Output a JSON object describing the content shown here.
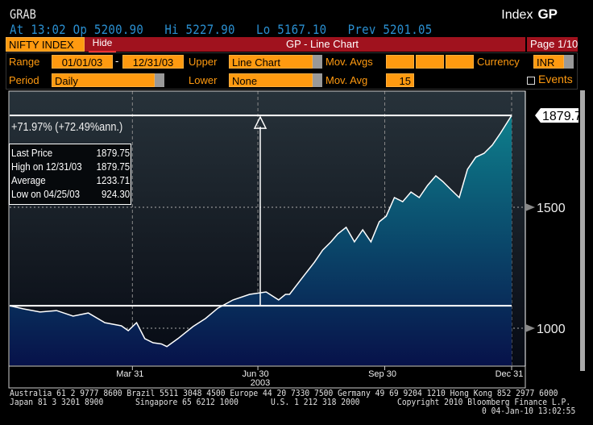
{
  "header": {
    "command": "GRAB",
    "security_type": "Index",
    "function": "GP",
    "quote": {
      "at": "At 13:02",
      "open": "Op 5200.90",
      "high": "Hi 5227.90",
      "low": "Lo 5167.10",
      "prev": "Prev 5201.05"
    }
  },
  "toolbar": {
    "ticker": "NIFTY INDEX",
    "hide_label": "Hide",
    "title": "GP - Line Chart",
    "page": "Page 1/10"
  },
  "controls": {
    "range_label": "Range",
    "range_start": "01/01/03",
    "range_sep": "-",
    "range_end": "12/31/03",
    "upper_label": "Upper",
    "upper_value": "Line Chart",
    "movavgs_label": "Mov. Avgs",
    "currency_label": "Currency",
    "currency_value": "INR",
    "period_label": "Period",
    "period_value": "Daily",
    "lower_label": "Lower",
    "lower_value": "None",
    "movavg_label": "Mov. Avg",
    "movavg_value": "15",
    "events_label": "Events"
  },
  "stats": {
    "change": "+71.97% (+72.49%ann.)",
    "rows": [
      [
        "Last Price",
        "1879.75"
      ],
      [
        "High on 12/31/03",
        "1879.75"
      ],
      [
        "Average",
        "1233.71"
      ],
      [
        "Low on 04/25/03",
        "924.30"
      ]
    ]
  },
  "chart_data": {
    "type": "area",
    "ylim": [
      900,
      2000
    ],
    "y_ticks": [
      "1500",
      "1000"
    ],
    "last_label": "1879.75",
    "x_ticks": [
      "Mar 31",
      "Jun 30",
      "Sep 30",
      "Dec 31"
    ],
    "year_label": "2003",
    "colors": {
      "line": "#ffffff",
      "fill_top": "#0e7f8c",
      "fill_bottom": "#07124a"
    },
    "series": [
      {
        "dates": [
          "2003-01-01",
          "2003-01-11",
          "2003-01-23",
          "2003-02-04",
          "2003-02-16",
          "2003-02-27",
          "2003-03-11",
          "2003-03-23",
          "2003-03-28",
          "2003-04-03",
          "2003-04-09",
          "2003-04-15",
          "2003-04-21",
          "2003-04-25",
          "2003-05-03",
          "2003-05-14",
          "2003-05-23",
          "2003-06-01",
          "2003-06-12",
          "2003-06-24",
          "2003-07-06",
          "2003-07-15",
          "2003-07-20",
          "2003-07-23",
          "2003-08-01",
          "2003-08-10",
          "2003-08-16",
          "2003-08-22",
          "2003-08-27",
          "2003-09-02",
          "2003-09-08",
          "2003-09-14",
          "2003-09-20",
          "2003-09-26",
          "2003-10-01",
          "2003-10-07",
          "2003-10-13",
          "2003-10-19",
          "2003-10-25",
          "2003-10-31",
          "2003-11-06",
          "2003-11-11",
          "2003-11-17",
          "2003-11-23",
          "2003-11-29",
          "2003-12-05",
          "2003-12-11",
          "2003-12-17",
          "2003-12-23",
          "2003-12-31"
        ],
        "values": [
          1093,
          1080,
          1067,
          1073,
          1050,
          1063,
          1023,
          1010,
          990,
          1023,
          957,
          940,
          935,
          924.3,
          957,
          1007,
          1040,
          1083,
          1117,
          1140,
          1150,
          1117,
          1140,
          1140,
          1207,
          1273,
          1323,
          1357,
          1390,
          1417,
          1357,
          1407,
          1357,
          1440,
          1463,
          1540,
          1523,
          1563,
          1540,
          1590,
          1630,
          1607,
          1573,
          1540,
          1657,
          1707,
          1723,
          1757,
          1807,
          1879.75
        ]
      }
    ]
  },
  "footer": {
    "line1": "Australia 61 2 9777 8600 Brazil 5511 3048 4500 Europe 44 20 7330 7500 Germany 49 69 9204 1210 Hong Kong 852 2977 6000",
    "line2a": "Japan 81 3 3201 8900",
    "line2b": "Singapore 65 6212 1000",
    "line2c": "U.S. 1 212 318 2000",
    "line2d": "Copyright 2010 Bloomberg Finance L.P.",
    "line3": "0 04-Jan-10 13:02:55"
  }
}
